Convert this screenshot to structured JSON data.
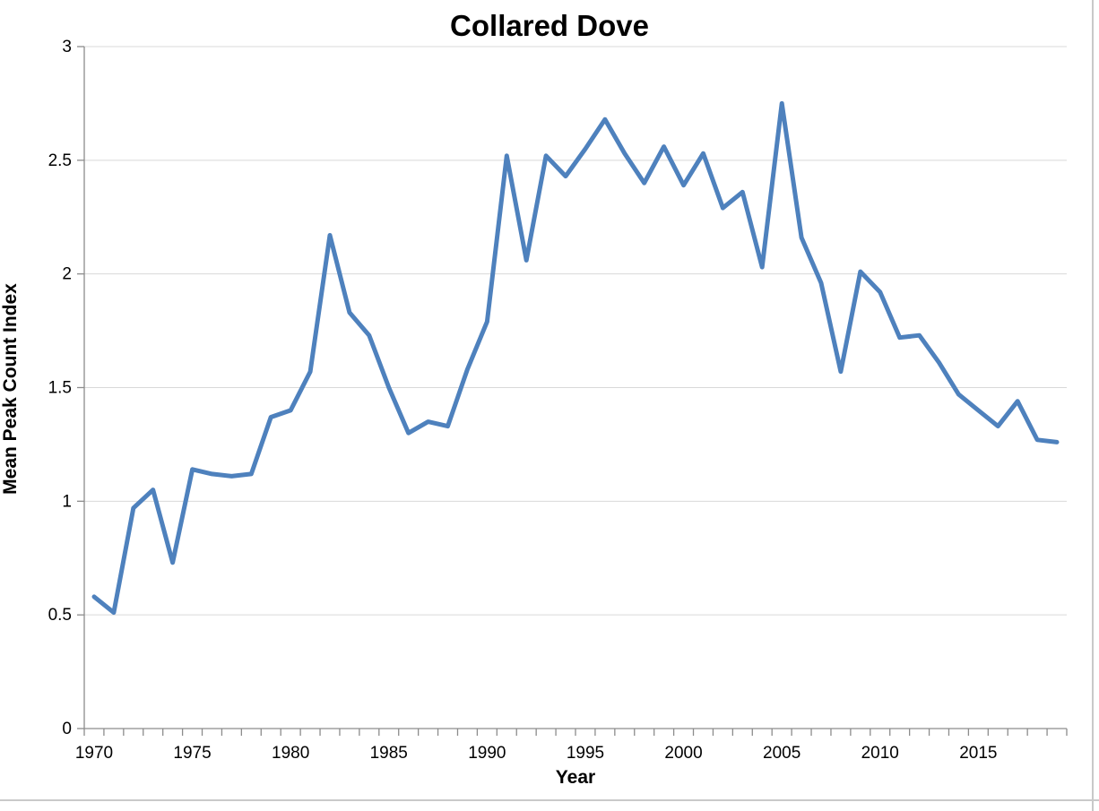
{
  "chart_data": {
    "type": "line",
    "title": "Collared Dove",
    "xlabel": "Year",
    "ylabel": "Mean Peak Count Index",
    "x": [
      1970,
      1971,
      1972,
      1973,
      1974,
      1975,
      1976,
      1977,
      1978,
      1979,
      1980,
      1981,
      1982,
      1983,
      1984,
      1985,
      1986,
      1987,
      1988,
      1989,
      1990,
      1991,
      1992,
      1993,
      1994,
      1995,
      1996,
      1997,
      1998,
      1999,
      2000,
      2001,
      2002,
      2003,
      2004,
      2005,
      2006,
      2007,
      2008,
      2009,
      2010,
      2011,
      2012,
      2013,
      2014,
      2015,
      2016,
      2017,
      2018,
      2019
    ],
    "values": [
      0.58,
      0.51,
      0.97,
      1.05,
      0.73,
      1.14,
      1.12,
      1.11,
      1.12,
      1.37,
      1.4,
      1.57,
      2.17,
      1.83,
      1.73,
      1.5,
      1.3,
      1.35,
      1.33,
      1.58,
      1.79,
      2.52,
      2.06,
      2.52,
      2.43,
      2.55,
      2.68,
      2.53,
      2.4,
      2.56,
      2.39,
      2.53,
      2.29,
      2.36,
      2.03,
      2.75,
      2.16,
      1.96,
      1.57,
      2.01,
      1.92,
      1.72,
      1.73,
      1.61,
      1.47,
      1.4,
      1.33,
      1.44,
      1.27,
      1.26
    ],
    "ylim": [
      0,
      3
    ],
    "ytick_labels": [
      "0",
      "0.5",
      "1",
      "1.5",
      "2",
      "2.5",
      "3"
    ],
    "xtick_labels": [
      "1970",
      "1975",
      "1980",
      "1985",
      "1990",
      "1995",
      "2000",
      "2005",
      "2010",
      "2015"
    ],
    "grid": true,
    "legend": "none",
    "colors": {
      "series_line": "#4E81BD",
      "gridline": "#D9D9D9",
      "axis_line": "#8C8C8C",
      "text": "#000000",
      "background": "#FFFFFF"
    }
  }
}
